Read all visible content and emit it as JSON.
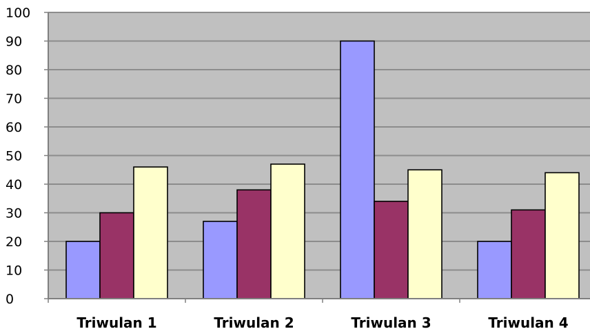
{
  "chart_data": {
    "type": "bar",
    "title": "",
    "xlabel": "",
    "ylabel": "",
    "categories": [
      "Triwulan 1",
      "Triwulan 2",
      "Triwulan 3",
      "Triwulan 4"
    ],
    "series": [
      {
        "values": [
          20,
          27,
          90,
          20
        ],
        "color": "#9999ff"
      },
      {
        "values": [
          30,
          38,
          34,
          31
        ],
        "color": "#993366"
      },
      {
        "values": [
          46,
          47,
          45,
          44
        ],
        "color": "#ffffcc"
      }
    ],
    "ylim": [
      0,
      100
    ],
    "yticks": [
      "0",
      "10",
      "20",
      "30",
      "40",
      "50",
      "60",
      "70",
      "80",
      "90",
      "100"
    ],
    "grid": true,
    "legend": "none",
    "plot_background": "#c0c0c0",
    "gridline_color": "#8c8c8c"
  }
}
